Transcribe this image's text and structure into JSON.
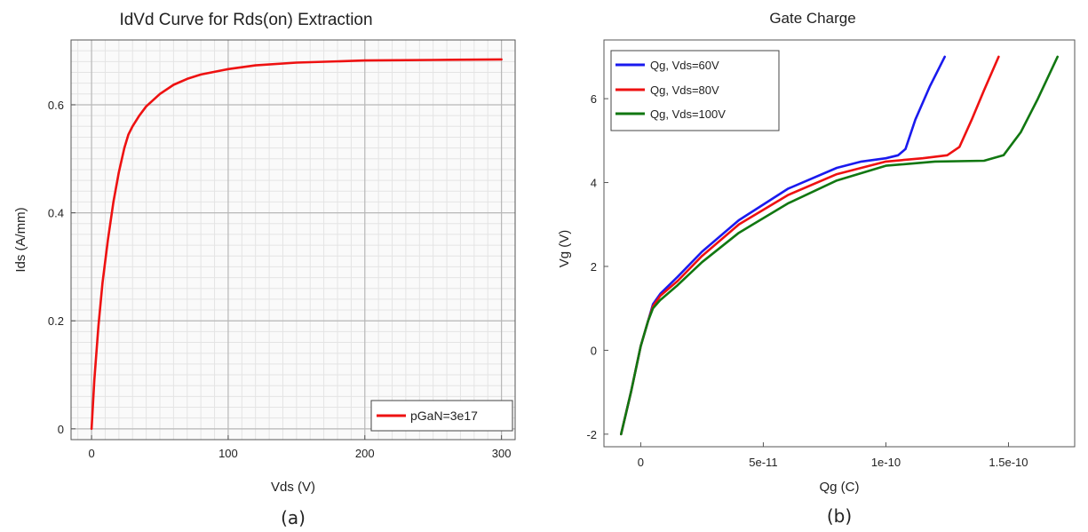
{
  "captions": [
    "(a)",
    "(b)"
  ],
  "chart_data": [
    {
      "type": "line",
      "title": "IdVd Curve for Rds(on) Extraction",
      "xlabel": "Vds (V)",
      "ylabel": "Ids (A/mm)",
      "xlim": [
        -15,
        310
      ],
      "ylim": [
        -0.02,
        0.72
      ],
      "xticks": [
        0,
        100,
        200,
        300
      ],
      "xtick_labels": [
        "0",
        "100",
        "200",
        "300"
      ],
      "yticks": [
        0,
        0.2,
        0.4,
        0.6
      ],
      "ytick_labels": [
        "0",
        "0.2",
        "0.4",
        "0.6"
      ],
      "grid": true,
      "legend_position": "bottom-right",
      "series": [
        {
          "name": "pGaN=3e17",
          "color": "#ee1111",
          "x": [
            0,
            2,
            5,
            8,
            12,
            16,
            20,
            24,
            27,
            30,
            35,
            40,
            50,
            60,
            70,
            80,
            100,
            120,
            150,
            200,
            250,
            300
          ],
          "y": [
            0,
            0.09,
            0.19,
            0.27,
            0.35,
            0.42,
            0.475,
            0.52,
            0.545,
            0.56,
            0.58,
            0.597,
            0.62,
            0.637,
            0.648,
            0.656,
            0.666,
            0.673,
            0.678,
            0.682,
            0.683,
            0.684
          ]
        }
      ]
    },
    {
      "type": "line",
      "title": "Gate Charge",
      "xlabel": "Qg (C)",
      "ylabel": "Vg (V)",
      "xlim": [
        -1.5e-11,
        1.77e-10
      ],
      "ylim": [
        -2.3,
        7.4
      ],
      "xticks": [
        0,
        5e-11,
        1e-10,
        1.5e-10
      ],
      "xtick_labels": [
        "0",
        "5e-11",
        "1e-10",
        "1.5e-10"
      ],
      "yticks": [
        -2,
        0,
        2,
        4,
        6
      ],
      "ytick_labels": [
        "-2",
        "0",
        "2",
        "4",
        "6"
      ],
      "grid": false,
      "legend_position": "top-left",
      "series": [
        {
          "name": "Qg, Vds=60V",
          "color": "#1a1aee",
          "x": [
            -8e-12,
            -4e-12,
            0,
            3e-12,
            5e-12,
            8e-12,
            1.5e-11,
            2.5e-11,
            4e-11,
            6e-11,
            8e-11,
            9e-11,
            1e-10,
            1.05e-10,
            1.08e-10,
            1.12e-10,
            1.18e-10,
            1.24e-10
          ],
          "y": [
            -2.0,
            -1.0,
            0.1,
            0.7,
            1.1,
            1.35,
            1.75,
            2.35,
            3.1,
            3.85,
            4.35,
            4.5,
            4.58,
            4.65,
            4.8,
            5.5,
            6.3,
            7.0
          ]
        },
        {
          "name": "Qg, Vds=80V",
          "color": "#ee1111",
          "x": [
            -8e-12,
            -4e-12,
            0,
            3e-12,
            5e-12,
            8e-12,
            1.5e-11,
            2.5e-11,
            4e-11,
            6e-11,
            8e-11,
            1e-10,
            1.15e-10,
            1.25e-10,
            1.3e-10,
            1.35e-10,
            1.4e-10,
            1.46e-10
          ],
          "y": [
            -2.0,
            -1.0,
            0.1,
            0.7,
            1.05,
            1.3,
            1.65,
            2.25,
            3.0,
            3.7,
            4.2,
            4.5,
            4.58,
            4.65,
            4.85,
            5.5,
            6.2,
            7.0
          ]
        },
        {
          "name": "Qg, Vds=100V",
          "color": "#117711",
          "x": [
            -8e-12,
            -4e-12,
            0,
            3e-12,
            5e-12,
            8e-12,
            1.5e-11,
            2.5e-11,
            4e-11,
            6e-11,
            8e-11,
            1e-10,
            1.2e-10,
            1.4e-10,
            1.48e-10,
            1.55e-10,
            1.62e-10,
            1.7e-10
          ],
          "y": [
            -2.0,
            -1.0,
            0.1,
            0.7,
            1.0,
            1.2,
            1.55,
            2.1,
            2.8,
            3.5,
            4.05,
            4.4,
            4.5,
            4.52,
            4.65,
            5.2,
            6.0,
            7.0
          ]
        }
      ]
    }
  ]
}
